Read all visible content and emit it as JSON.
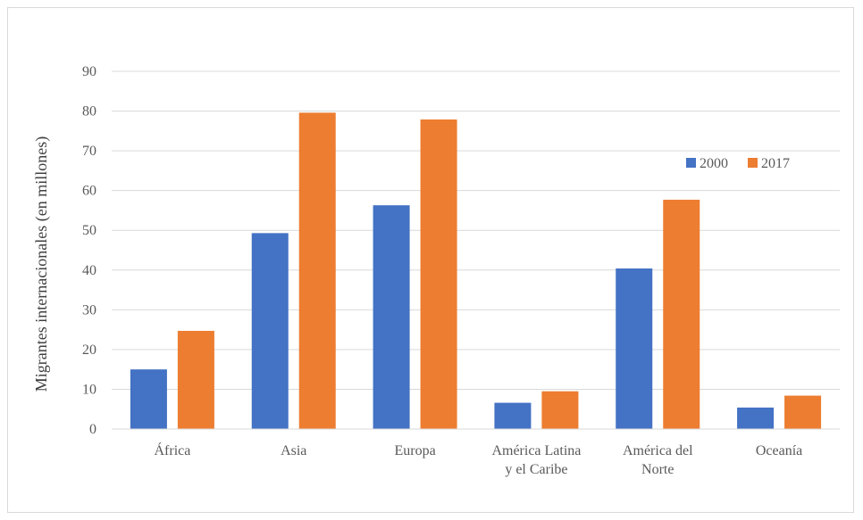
{
  "chart_data": {
    "type": "bar",
    "title": "",
    "xlabel": "",
    "ylabel": "Migrantes internacionales (en millones)",
    "ylim": [
      0,
      90
    ],
    "yticks": [
      0,
      10,
      20,
      30,
      40,
      50,
      60,
      70,
      80,
      90
    ],
    "grid": true,
    "legend_position": "right",
    "categories": [
      [
        "África"
      ],
      [
        "Asia"
      ],
      [
        "Europa"
      ],
      [
        "América Latina",
        "y el Caribe"
      ],
      [
        "América del",
        "Norte"
      ],
      [
        "Oceanía"
      ]
    ],
    "series": [
      {
        "name": "2000",
        "color": "#4472c4",
        "values": [
          15,
          49.3,
          56.3,
          6.6,
          40.4,
          5.4
        ]
      },
      {
        "name": "2017",
        "color": "#ed7d31",
        "values": [
          24.7,
          79.6,
          77.9,
          9.5,
          57.7,
          8.4
        ]
      }
    ]
  }
}
